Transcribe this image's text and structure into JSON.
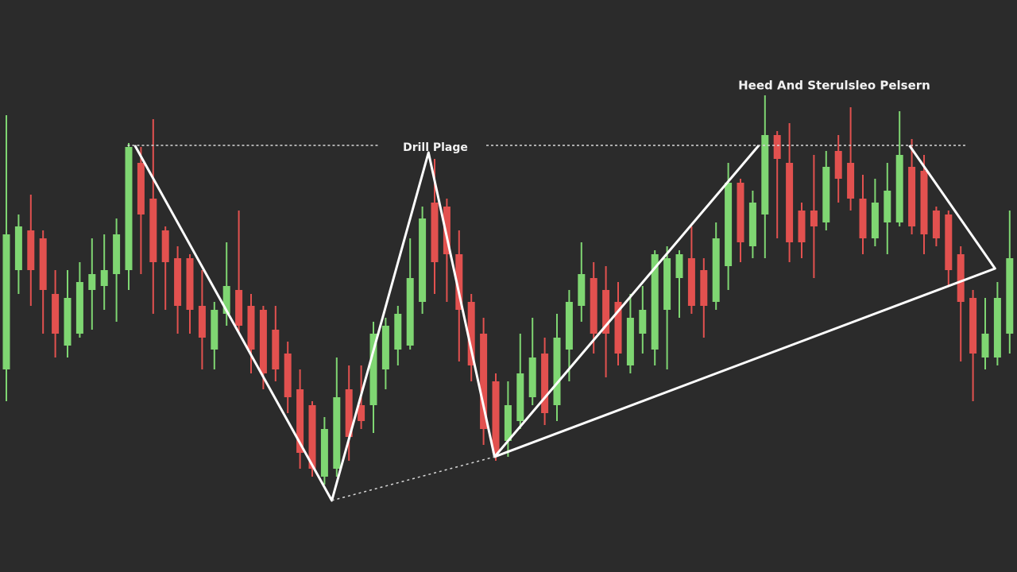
{
  "chart_data": {
    "type": "candlestick",
    "title": "Heed And Sterulsleo Pelsern",
    "annotation": "Drill Plage",
    "categories": [
      null,
      null,
      null,
      null,
      null,
      null,
      null,
      null,
      null,
      null,
      null,
      null,
      null,
      null,
      null,
      null,
      null,
      null,
      null,
      null,
      null,
      null,
      null,
      null,
      null,
      null,
      null,
      null,
      null,
      null,
      null,
      null,
      null,
      null,
      null,
      null,
      null,
      null,
      null,
      null,
      null,
      null,
      null,
      null,
      null,
      null,
      null,
      null,
      null,
      null,
      null,
      null,
      null,
      null,
      null,
      null,
      null,
      null,
      null,
      null,
      null,
      null,
      null,
      null,
      null,
      null,
      null,
      null,
      null,
      null,
      null,
      null,
      null,
      null,
      null,
      null,
      null,
      null,
      null,
      null,
      null,
      null,
      null
    ],
    "open": [
      255,
      380,
      430,
      420,
      350,
      285,
      300,
      355,
      360,
      375,
      380,
      515,
      470,
      430,
      395,
      395,
      335,
      280,
      325,
      355,
      335,
      330,
      305,
      275,
      230,
      210,
      120,
      130,
      230,
      210,
      210,
      255,
      280,
      285,
      340,
      465,
      460,
      400,
      340,
      300,
      240,
      165,
      190,
      220,
      275,
      210,
      280,
      335,
      370,
      355,
      340,
      260,
      300,
      280,
      330,
      370,
      395,
      380,
      340,
      385,
      490,
      410,
      450,
      550,
      515,
      455,
      455,
      440,
      530,
      515,
      470,
      420,
      440,
      440,
      510,
      505,
      455,
      450,
      400,
      345,
      270,
      270,
      300
    ],
    "high": [
      575,
      450,
      475,
      430,
      380,
      380,
      390,
      420,
      425,
      445,
      540,
      535,
      570,
      435,
      410,
      400,
      380,
      340,
      415,
      455,
      350,
      335,
      335,
      290,
      255,
      215,
      195,
      270,
      260,
      260,
      315,
      320,
      335,
      420,
      460,
      520,
      470,
      430,
      350,
      320,
      250,
      240,
      300,
      320,
      295,
      325,
      355,
      415,
      390,
      385,
      365,
      350,
      360,
      405,
      410,
      405,
      435,
      395,
      440,
      515,
      495,
      480,
      600,
      555,
      565,
      465,
      525,
      530,
      550,
      585,
      500,
      495,
      515,
      580,
      545,
      525,
      460,
      455,
      410,
      355,
      345,
      365,
      455
    ],
    "low": [
      215,
      350,
      335,
      300,
      270,
      270,
      295,
      305,
      330,
      315,
      355,
      375,
      325,
      330,
      300,
      300,
      255,
      255,
      310,
      300,
      250,
      230,
      240,
      200,
      130,
      120,
      110,
      120,
      140,
      180,
      175,
      230,
      260,
      280,
      325,
      350,
      340,
      265,
      240,
      160,
      140,
      145,
      180,
      210,
      185,
      190,
      240,
      315,
      275,
      245,
      260,
      250,
      275,
      260,
      255,
      320,
      325,
      295,
      330,
      355,
      390,
      395,
      395,
      420,
      390,
      395,
      370,
      430,
      465,
      455,
      400,
      410,
      400,
      435,
      425,
      400,
      410,
      360,
      265,
      215,
      255,
      260,
      275
    ],
    "close": [
      425,
      435,
      380,
      355,
      300,
      345,
      365,
      375,
      380,
      425,
      535,
      450,
      390,
      390,
      335,
      330,
      295,
      330,
      360,
      310,
      280,
      250,
      255,
      220,
      150,
      130,
      180,
      220,
      170,
      190,
      300,
      310,
      325,
      370,
      445,
      390,
      400,
      330,
      260,
      180,
      150,
      210,
      250,
      270,
      200,
      295,
      340,
      375,
      300,
      300,
      275,
      320,
      330,
      400,
      395,
      400,
      335,
      335,
      420,
      490,
      415,
      465,
      550,
      520,
      415,
      415,
      435,
      510,
      495,
      470,
      420,
      465,
      480,
      525,
      435,
      425,
      420,
      380,
      340,
      275,
      300,
      345,
      395
    ],
    "up_color": "#7fd672",
    "down_color": "#e2514f",
    "ylim": [
      0,
      720
    ],
    "pattern_lines": [
      {
        "x": [
          10.5,
          26.6,
          34.5,
          39.9,
          61.5
        ],
        "values": [
          537,
          90,
          528,
          145,
          537
        ],
        "color": "#ffffff"
      },
      {
        "x": [
          73.8,
          80.8,
          39.9
        ],
        "values": [
          537,
          382,
          145
        ],
        "color": "#ffffff"
      }
    ],
    "neckline": {
      "x": [
        9.9,
        78.4
      ],
      "values": [
        537,
        537
      ],
      "color": "#d8d8d8"
    },
    "support": {
      "x": [
        26.6,
        39.9
      ],
      "values": [
        90,
        145
      ],
      "color": "#d8d8d8"
    }
  }
}
